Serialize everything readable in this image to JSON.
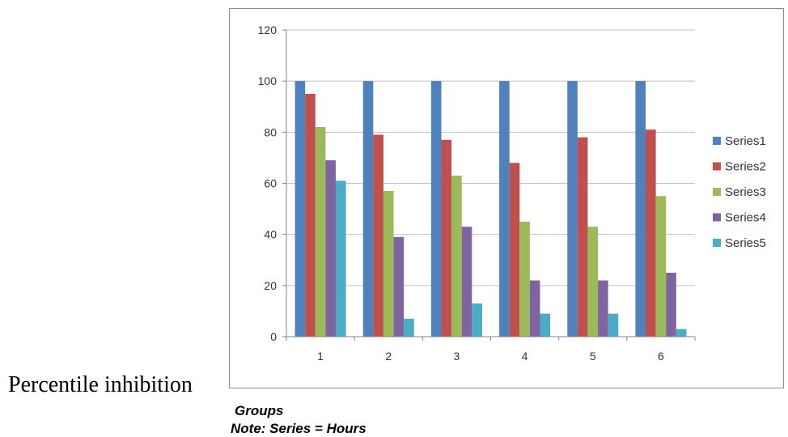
{
  "outside_label": "Percentile inhibition",
  "xlabel": "Groups",
  "note": "Note: Series = Hours",
  "colors": {
    "Series1": "#4f81bd",
    "Series2": "#c0504d",
    "Series3": "#9bbb59",
    "Series4": "#8064a2",
    "Series5": "#4bacc6",
    "grid": "#c0c0c0",
    "axis": "#868686"
  },
  "chart_data": {
    "type": "bar",
    "categories": [
      "1",
      "2",
      "3",
      "4",
      "5",
      "6"
    ],
    "series": [
      {
        "name": "Series1",
        "values": [
          100,
          100,
          100,
          100,
          100,
          100
        ]
      },
      {
        "name": "Series2",
        "values": [
          95,
          79,
          77,
          68,
          78,
          81
        ]
      },
      {
        "name": "Series3",
        "values": [
          82,
          57,
          63,
          45,
          43,
          55
        ]
      },
      {
        "name": "Series4",
        "values": [
          69,
          39,
          43,
          22,
          22,
          25
        ]
      },
      {
        "name": "Series5",
        "values": [
          61,
          7,
          13,
          9,
          9,
          3
        ]
      }
    ],
    "ylim": [
      0,
      120
    ],
    "yticks": [
      "0",
      "20",
      "40",
      "60",
      "80",
      "100",
      "120"
    ],
    "grid": true,
    "legend": "right"
  }
}
